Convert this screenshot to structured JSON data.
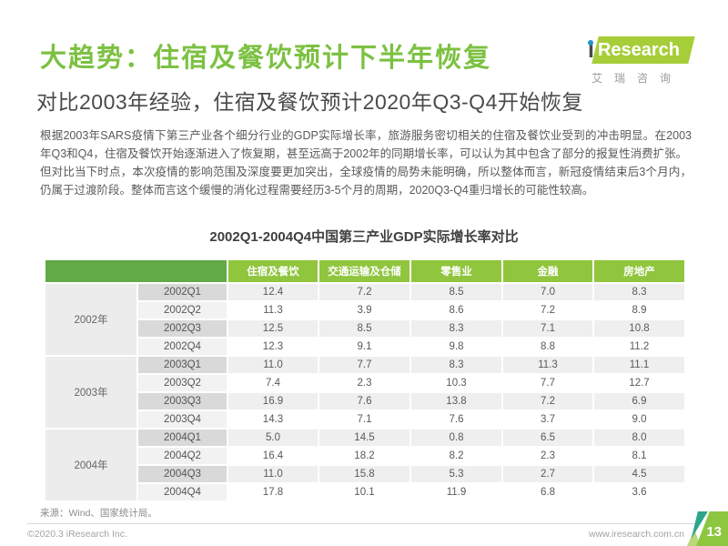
{
  "header": {
    "title": "大趋势：住宿及餐饮预计下半年恢复",
    "subtitle": "对比2003年经验，住宿及餐饮预计2020年Q3-Q4开始恢复",
    "logo": {
      "i": "i",
      "research": "Research",
      "caption": "艾瑞咨询"
    }
  },
  "body": {
    "paragraph1": "根据2003年SARS疫情下第三产业各个细分行业的GDP实际增长率，旅游服务密切相关的住宿及餐饮业受到的冲击明显。在2003年Q3和Q4，住宿及餐饮开始逐渐进入了恢复期，甚至远高于2002年的同期增长率，可以认为其中包含了部分的报复性消费扩张。",
    "paragraph2": "但对比当下时点，本次疫情的影响范围及深度要更加突出，全球疫情的局势未能明确，所以整体而言，新冠疫情结束后3个月内，仍属于过渡阶段。整体而言这个缓慢的消化过程需要经历3-5个月的周期，2020Q3-Q4重归增长的可能性较高。"
  },
  "table": {
    "title": "2002Q1-2004Q4中国第三产业GDP实际增长率对比",
    "columns": [
      "住宿及餐饮",
      "交通运输及仓储",
      "零售业",
      "金融",
      "房地产"
    ],
    "groups": [
      {
        "year": "2002年",
        "rows": [
          {
            "quarter": "2002Q1",
            "values": [
              "12.4",
              "7.2",
              "8.5",
              "7.0",
              "8.3"
            ]
          },
          {
            "quarter": "2002Q2",
            "values": [
              "11.3",
              "3.9",
              "8.6",
              "7.2",
              "8.9"
            ]
          },
          {
            "quarter": "2002Q3",
            "values": [
              "12.5",
              "8.5",
              "8.3",
              "7.1",
              "10.8"
            ]
          },
          {
            "quarter": "2002Q4",
            "values": [
              "12.3",
              "9.1",
              "9.8",
              "8.8",
              "11.2"
            ]
          }
        ]
      },
      {
        "year": "2003年",
        "rows": [
          {
            "quarter": "2003Q1",
            "values": [
              "11.0",
              "7.7",
              "8.3",
              "11.3",
              "11.1"
            ]
          },
          {
            "quarter": "2003Q2",
            "values": [
              "7.4",
              "2.3",
              "10.3",
              "7.7",
              "12.7"
            ]
          },
          {
            "quarter": "2003Q3",
            "values": [
              "16.9",
              "7.6",
              "13.8",
              "7.2",
              "6.9"
            ]
          },
          {
            "quarter": "2003Q4",
            "values": [
              "14.3",
              "7.1",
              "7.6",
              "3.7",
              "9.0"
            ]
          }
        ]
      },
      {
        "year": "2004年",
        "rows": [
          {
            "quarter": "2004Q1",
            "values": [
              "5.0",
              "14.5",
              "0.8",
              "6.5",
              "8.0"
            ]
          },
          {
            "quarter": "2004Q2",
            "values": [
              "16.4",
              "18.2",
              "8.2",
              "2.3",
              "8.1"
            ]
          },
          {
            "quarter": "2004Q3",
            "values": [
              "11.0",
              "15.8",
              "5.3",
              "2.7",
              "4.5"
            ]
          },
          {
            "quarter": "2004Q4",
            "values": [
              "17.8",
              "10.1",
              "11.9",
              "6.8",
              "3.6"
            ]
          }
        ]
      }
    ],
    "source": "来源：Wind、国家统计局。"
  },
  "footer": {
    "copyright": "©2020.3 iResearch Inc.",
    "website": "www.iresearch.com.cn",
    "page_number": "13"
  },
  "colors": {
    "brand-green": "#7cc142",
    "logo-green": "#a6ce39",
    "logo-dot-blue": "#1f96c6",
    "table-header-green": "#90c53e",
    "table-header-left-green": "#61aa46",
    "row-alt-gray": "#efefef",
    "quarter-dark-gray": "#d9d9d9",
    "year-gray": "#ececec",
    "badge-light-green": "#8dc63f",
    "badge-teal": "#2ca58c"
  }
}
